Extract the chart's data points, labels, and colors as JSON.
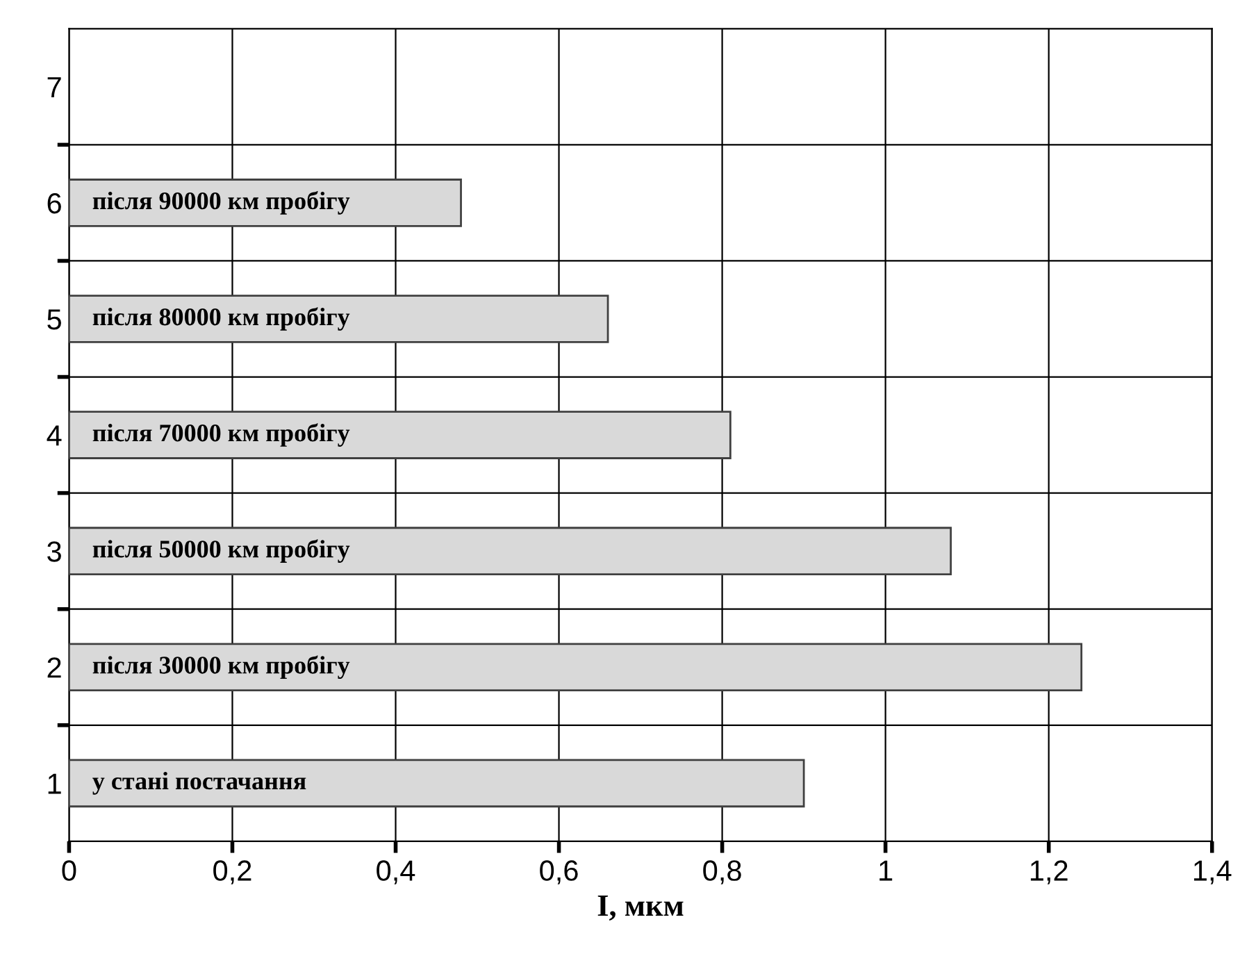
{
  "chart_data": {
    "type": "bar",
    "orientation": "horizontal",
    "categories": [
      "7",
      "6",
      "5",
      "4",
      "3",
      "2",
      "1"
    ],
    "values": [
      null,
      0.48,
      0.66,
      0.81,
      1.08,
      1.24,
      0.9
    ],
    "color": "#d9d9d9",
    "xlabel": "I, мкм",
    "xlim": [
      0,
      1.4
    ],
    "xticks": [
      0,
      {
        "value": 0.2,
        "label": "0,2"
      },
      {
        "value": 0.4,
        "label": "0,4"
      },
      {
        "value": 0.6,
        "label": "0,6"
      },
      {
        "value": 0.8,
        "label": "0,8"
      },
      1,
      {
        "value": 1.2,
        "label": "1,2"
      },
      {
        "value": 1.4,
        "label": "1,4"
      }
    ],
    "grid": true,
    "annotations": [
      "після 90000 км пробігу",
      "після 80000 км пробігу",
      "після 70000 км пробігу",
      "після 50000 км пробігу",
      "після 30000 км пробігу",
      "у стані постачання"
    ]
  }
}
